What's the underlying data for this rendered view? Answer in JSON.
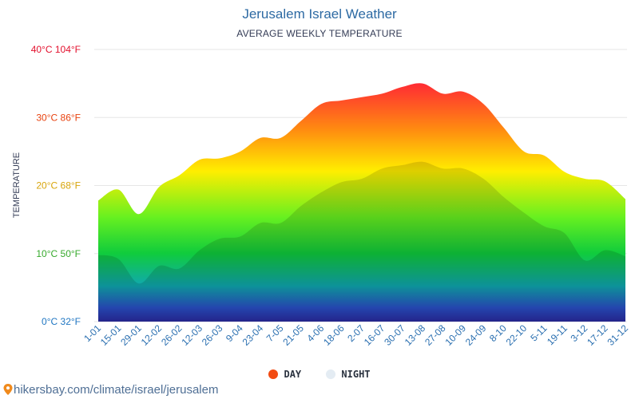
{
  "title": "Jerusalem Israel Weather",
  "subtitle": "AVERAGE WEEKLY TEMPERATURE",
  "source": "hikersbay.com/climate/israel/jerusalem",
  "legend": [
    {
      "label": "DAY",
      "color": "#f24b12"
    },
    {
      "label": "NIGHT",
      "color": "#e4ecf3"
    }
  ],
  "chart_data": {
    "type": "area",
    "ylabel": "TEMPERATURE",
    "ylim": [
      0,
      40
    ],
    "grid": true,
    "legend_position": "bottom-center",
    "y_ticks": [
      {
        "value": 40,
        "label": "40°C 104°F",
        "color": "#e3102d"
      },
      {
        "value": 30,
        "label": "30°C 86°F",
        "color": "#e8420f"
      },
      {
        "value": 20,
        "label": "20°C 68°F",
        "color": "#d8a50c"
      },
      {
        "value": 10,
        "label": "10°C 50°F",
        "color": "#36a92c"
      },
      {
        "value": 0,
        "label": "0°C 32°F",
        "color": "#1f76c2"
      }
    ],
    "categories": [
      "1-01",
      "15-01",
      "29-01",
      "12-02",
      "26-02",
      "12-03",
      "26-03",
      "9-04",
      "23-04",
      "7-05",
      "21-05",
      "4-06",
      "18-06",
      "2-07",
      "16-07",
      "30-07",
      "13-08",
      "27-08",
      "10-09",
      "24-09",
      "8-10",
      "22-10",
      "5-11",
      "19-11",
      "3-12",
      "17-12",
      "31-12"
    ],
    "series": [
      {
        "name": "DAY",
        "values": [
          17.8,
          19.4,
          15.8,
          19.8,
          21.5,
          23.8,
          24,
          25,
          27,
          27,
          29.5,
          32,
          32.5,
          33,
          33.5,
          34.5,
          35,
          33.5,
          33.8,
          32,
          28.5,
          25,
          24.4,
          22,
          21,
          20.6,
          18
        ]
      },
      {
        "name": "NIGHT",
        "values": [
          9.8,
          9.2,
          5.6,
          8.2,
          7.8,
          10.5,
          12.2,
          12.5,
          14.5,
          14.5,
          17,
          19,
          20.5,
          21,
          22.5,
          23,
          23.5,
          22.5,
          22.5,
          21,
          18.3,
          16,
          14,
          13,
          9,
          10.5,
          9.6
        ]
      }
    ]
  }
}
